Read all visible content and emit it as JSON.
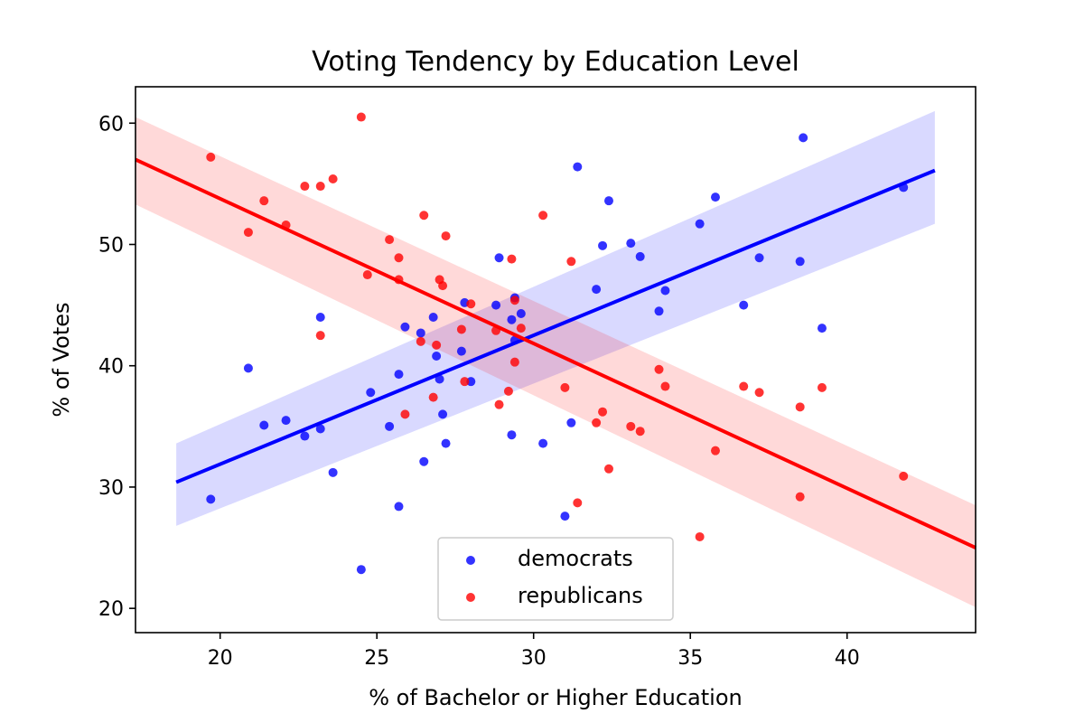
{
  "chart_data": {
    "type": "scatter",
    "title": "Voting Tendency by Education Level",
    "xlabel": "% of Bachelor or Higher Education",
    "ylabel": "% of Votes",
    "xlim": [
      17.3,
      44.1
    ],
    "ylim": [
      18.0,
      63.0
    ],
    "xticks": [
      20,
      25,
      30,
      35,
      40
    ],
    "yticks": [
      20,
      30,
      40,
      50,
      60
    ],
    "grid": false,
    "legend_position": "lower center",
    "series": [
      {
        "name": "democrats",
        "color": "#0000ff",
        "points": [
          [
            19.7,
            29.0
          ],
          [
            20.9,
            39.8
          ],
          [
            21.4,
            35.1
          ],
          [
            22.1,
            35.5
          ],
          [
            22.7,
            34.2
          ],
          [
            23.2,
            34.8
          ],
          [
            23.2,
            44.0
          ],
          [
            23.6,
            31.2
          ],
          [
            24.5,
            23.2
          ],
          [
            24.8,
            37.8
          ],
          [
            25.4,
            35.0
          ],
          [
            25.7,
            39.3
          ],
          [
            25.7,
            28.4
          ],
          [
            25.9,
            43.2
          ],
          [
            26.4,
            42.7
          ],
          [
            26.5,
            32.1
          ],
          [
            26.8,
            44.0
          ],
          [
            26.9,
            40.8
          ],
          [
            27.0,
            38.9
          ],
          [
            27.1,
            36.0
          ],
          [
            27.2,
            33.6
          ],
          [
            27.7,
            41.2
          ],
          [
            27.8,
            45.2
          ],
          [
            28.0,
            38.7
          ],
          [
            28.8,
            45.0
          ],
          [
            28.9,
            48.9
          ],
          [
            29.3,
            43.8
          ],
          [
            29.3,
            34.3
          ],
          [
            29.4,
            45.6
          ],
          [
            29.4,
            42.1
          ],
          [
            29.6,
            44.3
          ],
          [
            30.3,
            33.6
          ],
          [
            31.0,
            27.6
          ],
          [
            31.2,
            35.3
          ],
          [
            31.4,
            56.4
          ],
          [
            32.0,
            46.3
          ],
          [
            32.2,
            49.9
          ],
          [
            32.4,
            53.6
          ],
          [
            33.1,
            50.1
          ],
          [
            33.4,
            49.0
          ],
          [
            34.0,
            44.5
          ],
          [
            34.2,
            46.2
          ],
          [
            35.3,
            51.7
          ],
          [
            35.8,
            53.9
          ],
          [
            36.7,
            45.0
          ],
          [
            37.2,
            48.9
          ],
          [
            38.5,
            48.6
          ],
          [
            38.6,
            58.8
          ],
          [
            39.2,
            43.1
          ],
          [
            41.8,
            54.7
          ]
        ],
        "fit": {
          "x": [
            18.6,
            42.8
          ],
          "y": [
            30.4,
            56.1
          ],
          "ci_low": [
            26.8,
            51.7
          ],
          "ci_high": [
            33.6,
            61.0
          ]
        }
      },
      {
        "name": "republicans",
        "color": "#ff0000",
        "points": [
          [
            19.7,
            57.2
          ],
          [
            20.9,
            51.0
          ],
          [
            21.4,
            53.6
          ],
          [
            22.1,
            51.6
          ],
          [
            22.7,
            54.8
          ],
          [
            23.2,
            54.8
          ],
          [
            23.2,
            42.5
          ],
          [
            23.6,
            55.4
          ],
          [
            24.5,
            60.5
          ],
          [
            24.7,
            47.5
          ],
          [
            25.4,
            50.4
          ],
          [
            25.7,
            48.9
          ],
          [
            25.7,
            47.1
          ],
          [
            25.9,
            36.0
          ],
          [
            26.4,
            42.0
          ],
          [
            26.5,
            52.4
          ],
          [
            26.8,
            37.4
          ],
          [
            26.9,
            41.7
          ],
          [
            27.0,
            47.1
          ],
          [
            27.1,
            46.6
          ],
          [
            27.2,
            50.7
          ],
          [
            27.7,
            43.0
          ],
          [
            27.8,
            38.7
          ],
          [
            28.0,
            45.1
          ],
          [
            28.8,
            42.9
          ],
          [
            28.9,
            36.8
          ],
          [
            29.2,
            37.9
          ],
          [
            29.3,
            48.8
          ],
          [
            29.4,
            45.4
          ],
          [
            29.4,
            40.3
          ],
          [
            29.6,
            43.1
          ],
          [
            30.3,
            52.4
          ],
          [
            31.0,
            38.2
          ],
          [
            31.2,
            48.6
          ],
          [
            31.4,
            28.7
          ],
          [
            32.0,
            35.3
          ],
          [
            32.2,
            36.2
          ],
          [
            32.4,
            31.5
          ],
          [
            33.1,
            35.0
          ],
          [
            33.4,
            34.6
          ],
          [
            34.0,
            39.7
          ],
          [
            34.2,
            38.3
          ],
          [
            35.3,
            25.9
          ],
          [
            35.8,
            33.0
          ],
          [
            36.7,
            38.3
          ],
          [
            37.2,
            37.8
          ],
          [
            38.5,
            36.6
          ],
          [
            38.5,
            29.2
          ],
          [
            39.2,
            38.2
          ],
          [
            41.8,
            30.9
          ]
        ],
        "fit": {
          "x": [
            17.3,
            44.1
          ],
          "y": [
            57.0,
            25.0
          ],
          "ci_low": [
            53.3,
            20.1
          ],
          "ci_high": [
            60.5,
            28.5
          ]
        }
      }
    ]
  }
}
